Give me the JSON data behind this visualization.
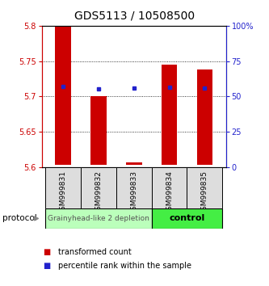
{
  "title": "GDS5113 / 10508500",
  "samples": [
    "GSM999831",
    "GSM999832",
    "GSM999833",
    "GSM999834",
    "GSM999835"
  ],
  "bar_bottoms": [
    5.603,
    5.603,
    5.603,
    5.603,
    5.603
  ],
  "bar_tops": [
    5.8,
    5.7,
    5.607,
    5.745,
    5.738
  ],
  "percentile_values": [
    5.714,
    5.711,
    5.712,
    5.713,
    5.712
  ],
  "ylim": [
    5.6,
    5.8
  ],
  "yticks": [
    5.6,
    5.65,
    5.7,
    5.75,
    5.8
  ],
  "ytick_labels": [
    "5.6",
    "5.65",
    "5.7",
    "5.75",
    "5.8"
  ],
  "right_yticks": [
    0,
    25,
    50,
    75,
    100
  ],
  "right_ytick_labels": [
    "0",
    "25",
    "50",
    "75",
    "100%"
  ],
  "bar_color": "#cc0000",
  "blue_color": "#2222cc",
  "group1_indices": [
    0,
    1,
    2
  ],
  "group2_indices": [
    3,
    4
  ],
  "group1_label": "Grainyhead-like 2 depletion",
  "group2_label": "control",
  "group1_color": "#bbffbb",
  "group2_color": "#44ee44",
  "protocol_label": "protocol",
  "legend_red": "transformed count",
  "legend_blue": "percentile rank within the sample",
  "bar_width": 0.45,
  "title_fontsize": 10,
  "tick_fontsize": 7,
  "sample_fontsize": 6.5,
  "legend_fontsize": 7,
  "group_fontsize1": 6.5,
  "group_fontsize2": 8
}
